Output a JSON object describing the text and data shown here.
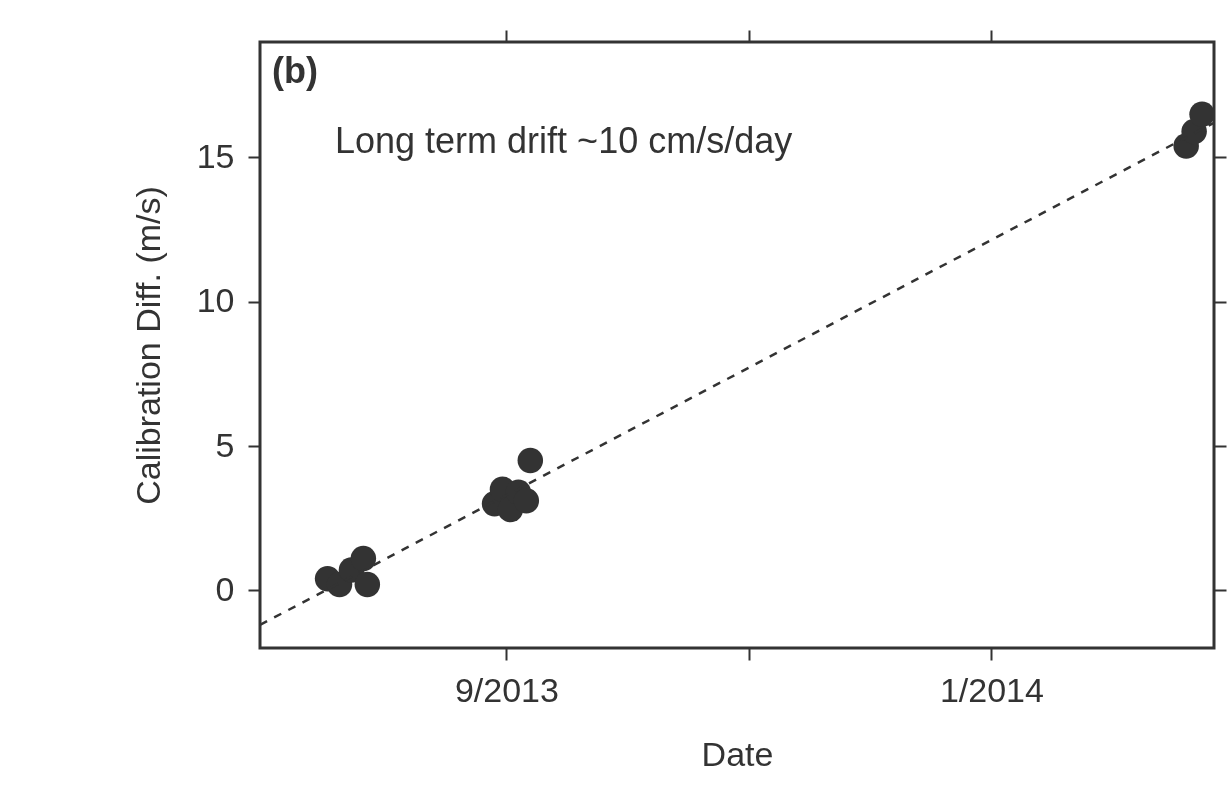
{
  "chart_data": {
    "type": "scatter",
    "xlabel": "Date",
    "ylabel": "Calibration Diff. (m/s)",
    "annotations": [
      "(b)",
      "Long term drift ~10 cm/s/day"
    ],
    "xlim": [
      "2013-07-01",
      "2014-02-26"
    ],
    "xticks": [
      {
        "value": "2013-09-01",
        "label": "9/2013"
      },
      {
        "value": "2013-11-01",
        "label": null
      },
      {
        "value": "2014-01-01",
        "label": "1/2014"
      }
    ],
    "ylim": [
      -2,
      19
    ],
    "yticks": [
      0,
      5,
      10,
      15
    ],
    "grid": false,
    "series": [
      {
        "type": "scatter",
        "marker": "circle",
        "color": "#333333",
        "x": [
          "2013-07-18",
          "2013-07-21",
          "2013-07-24",
          "2013-07-27",
          "2013-07-28",
          "2013-08-29",
          "2013-08-31",
          "2013-09-02",
          "2013-09-04",
          "2013-09-06",
          "2013-09-07",
          "2014-02-19",
          "2014-02-21",
          "2014-02-23"
        ],
        "values": [
          0.4,
          0.2,
          0.7,
          1.1,
          0.2,
          3.0,
          3.5,
          2.8,
          3.4,
          3.1,
          4.5,
          15.4,
          15.9,
          16.5
        ]
      },
      {
        "type": "line",
        "color": "#333333",
        "line_style": "dashed",
        "x": [
          "2013-07-01",
          "2014-02-26"
        ],
        "values": [
          -1.2,
          16.2
        ]
      }
    ]
  }
}
